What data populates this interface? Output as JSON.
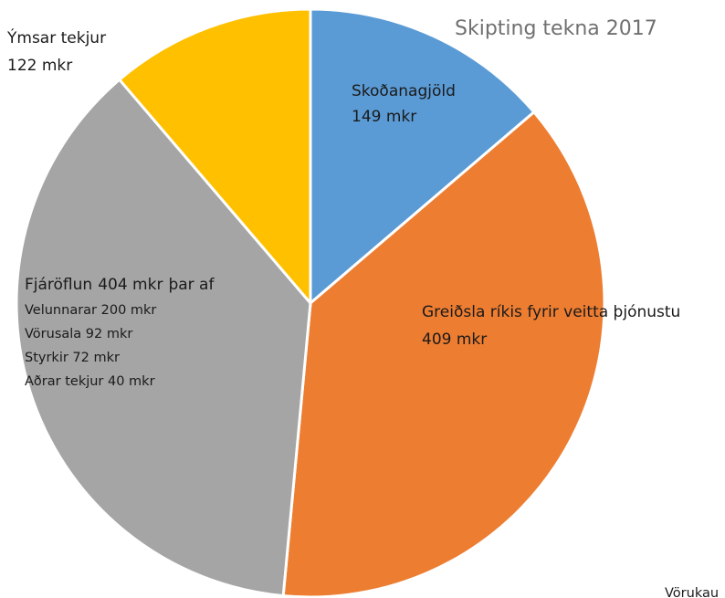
{
  "chart_data": {
    "type": "pie",
    "title": "Skipting tekna 2017",
    "categories": [
      "Skoðanagjöld",
      "Greiðsla ríkis fyrir veitta þjónustu",
      "Fjáröflun",
      "Ýmsar tekjur"
    ],
    "values": [
      149,
      409,
      404,
      122
    ],
    "value_labels": [
      "149 mkr",
      "409 mkr",
      "404 mkr",
      "122 mkr"
    ],
    "colors": [
      "#5b9bd5",
      "#ed7d31",
      "#a5a5a5",
      "#ffc000"
    ],
    "breakdown_title": "þar af",
    "breakdown": [
      "Velunnarar 200 mkr",
      "Vörusala 92 mkr",
      "Styrkir 72 mkr",
      "Aðrar tekjur 40 mkr"
    ],
    "annotation": "Vörukau"
  }
}
